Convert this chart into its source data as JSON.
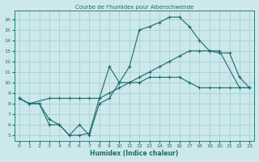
{
  "title": "Courbe de l'humidex pour Alberschwende",
  "xlabel": "Humidex (Indice chaleur)",
  "bg_color": "#cce8ea",
  "grid_color": "#aad4d8",
  "line_color": "#1a6b6b",
  "xlim": [
    -0.5,
    23.5
  ],
  "ylim": [
    4.5,
    16.8
  ],
  "xticks": [
    0,
    1,
    2,
    3,
    4,
    5,
    6,
    7,
    8,
    9,
    10,
    11,
    12,
    13,
    14,
    15,
    16,
    17,
    18,
    19,
    20,
    21,
    22,
    23
  ],
  "yticks": [
    5,
    6,
    7,
    8,
    9,
    10,
    11,
    12,
    13,
    14,
    15,
    16
  ],
  "line1_x": [
    0,
    1,
    3,
    4,
    5,
    6,
    7,
    8,
    9,
    10,
    11,
    12,
    13,
    14,
    15,
    16,
    17,
    18,
    19,
    20,
    22,
    23
  ],
  "line1_y": [
    8.5,
    8.0,
    8.5,
    8.5,
    8.5,
    8.5,
    8.5,
    8.5,
    9.0,
    9.5,
    10.0,
    10.5,
    11.0,
    11.5,
    12.0,
    12.5,
    13.0,
    13.0,
    13.0,
    13.0,
    9.5,
    9.5
  ],
  "line2_x": [
    0,
    1,
    2,
    3,
    4,
    5,
    6,
    7,
    8,
    9,
    10,
    11,
    12,
    13,
    14,
    15,
    16,
    17,
    18,
    19,
    20,
    21,
    22,
    23
  ],
  "line2_y": [
    8.5,
    8.0,
    8.0,
    6.0,
    6.0,
    5.0,
    6.0,
    5.0,
    8.0,
    8.5,
    10.0,
    11.5,
    15.0,
    15.3,
    15.7,
    16.2,
    16.2,
    15.3,
    14.0,
    13.0,
    12.8,
    12.8,
    10.5,
    9.5
  ],
  "line3_x": [
    0,
    1,
    2,
    3,
    4,
    5,
    6,
    7,
    8,
    9,
    10,
    11,
    12,
    13,
    14,
    15,
    16,
    17,
    18,
    19,
    20,
    21,
    22,
    23
  ],
  "line3_y": [
    8.5,
    8.0,
    8.0,
    6.5,
    6.0,
    5.0,
    5.0,
    5.2,
    8.5,
    11.5,
    10.0,
    10.0,
    10.0,
    10.5,
    10.5,
    10.5,
    10.5,
    10.0,
    9.5,
    9.5,
    9.5,
    9.5,
    9.5,
    9.5
  ]
}
